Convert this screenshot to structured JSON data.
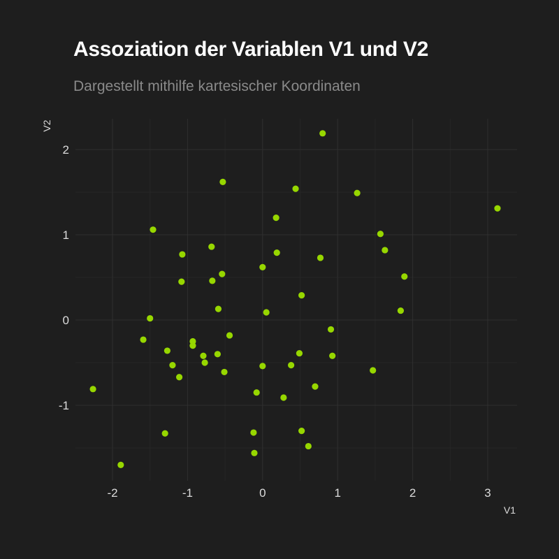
{
  "chart_data": {
    "type": "scatter",
    "title": "Assoziation der Variablen V1 und V2",
    "subtitle": "Dargestellt mithilfe kartesischer Koordinaten",
    "xlabel": "V1",
    "ylabel": "V2",
    "xlim": [
      -2.5,
      3.4
    ],
    "ylim": [
      -1.9,
      2.4
    ],
    "x_ticks": [
      -2,
      -1,
      0,
      1,
      2,
      3
    ],
    "y_ticks": [
      -1,
      0,
      1,
      2
    ],
    "x_tick_labels": [
      "-2",
      "-1",
      "0",
      "1",
      "2",
      "3"
    ],
    "y_tick_labels": [
      "-1",
      "0",
      "1",
      "2"
    ],
    "grid": true,
    "colors": {
      "background": "#1e1e1e",
      "point": "#97d700",
      "grid": "#2f2f2f",
      "subtitle": "#8a8a8a"
    },
    "points": [
      {
        "x": 0.8,
        "y": 2.19
      },
      {
        "x": -0.53,
        "y": 1.62
      },
      {
        "x": 0.44,
        "y": 1.54
      },
      {
        "x": 1.26,
        "y": 1.49
      },
      {
        "x": 3.13,
        "y": 1.31
      },
      {
        "x": 0.18,
        "y": 1.2
      },
      {
        "x": -1.46,
        "y": 1.06
      },
      {
        "x": 1.57,
        "y": 1.01
      },
      {
        "x": -0.68,
        "y": 0.86
      },
      {
        "x": 1.63,
        "y": 0.82
      },
      {
        "x": 0.19,
        "y": 0.79
      },
      {
        "x": -1.07,
        "y": 0.77
      },
      {
        "x": 0.77,
        "y": 0.73
      },
      {
        "x": 0.0,
        "y": 0.62
      },
      {
        "x": -0.54,
        "y": 0.54
      },
      {
        "x": 1.89,
        "y": 0.51
      },
      {
        "x": -0.67,
        "y": 0.46
      },
      {
        "x": -1.08,
        "y": 0.45
      },
      {
        "x": 0.52,
        "y": 0.29
      },
      {
        "x": -0.59,
        "y": 0.13
      },
      {
        "x": 1.84,
        "y": 0.11
      },
      {
        "x": 0.05,
        "y": 0.09
      },
      {
        "x": -1.5,
        "y": 0.02
      },
      {
        "x": 0.91,
        "y": -0.11
      },
      {
        "x": -0.44,
        "y": -0.18
      },
      {
        "x": -1.59,
        "y": -0.23
      },
      {
        "x": -0.93,
        "y": -0.25
      },
      {
        "x": -0.93,
        "y": -0.3
      },
      {
        "x": -1.27,
        "y": -0.36
      },
      {
        "x": 0.49,
        "y": -0.39
      },
      {
        "x": -0.6,
        "y": -0.4
      },
      {
        "x": -0.79,
        "y": -0.42
      },
      {
        "x": 0.93,
        "y": -0.42
      },
      {
        "x": -0.77,
        "y": -0.5
      },
      {
        "x": -1.2,
        "y": -0.53
      },
      {
        "x": 0.38,
        "y": -0.53
      },
      {
        "x": 0.0,
        "y": -0.54
      },
      {
        "x": 1.47,
        "y": -0.59
      },
      {
        "x": -0.51,
        "y": -0.61
      },
      {
        "x": -1.11,
        "y": -0.67
      },
      {
        "x": 0.7,
        "y": -0.78
      },
      {
        "x": -2.26,
        "y": -0.81
      },
      {
        "x": -0.08,
        "y": -0.85
      },
      {
        "x": 0.28,
        "y": -0.91
      },
      {
        "x": 0.52,
        "y": -1.3
      },
      {
        "x": -0.12,
        "y": -1.32
      },
      {
        "x": -1.3,
        "y": -1.33
      },
      {
        "x": 0.61,
        "y": -1.48
      },
      {
        "x": -0.11,
        "y": -1.56
      },
      {
        "x": -1.89,
        "y": -1.7
      }
    ]
  }
}
